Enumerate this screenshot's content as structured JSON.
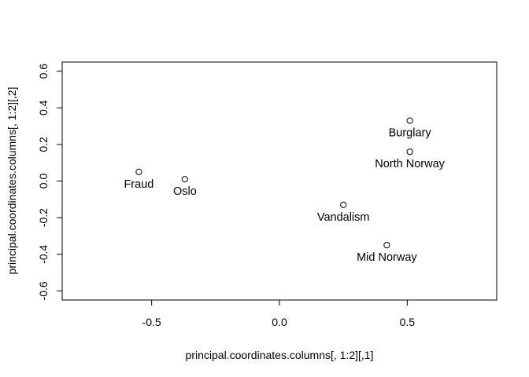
{
  "chart_data": {
    "type": "scatter",
    "title": "",
    "xlabel": "principal.coordinates.columns[, 1:2][,1]",
    "ylabel": "principal.coordinates.columns[, 1:2][,2]",
    "xlim": [
      -0.85,
      0.85
    ],
    "ylim": [
      -0.65,
      0.65
    ],
    "xticks": [
      -0.5,
      0.0,
      0.5
    ],
    "xtick_labels": [
      "-0.5",
      "0.0",
      "0.5"
    ],
    "yticks": [
      -0.6,
      -0.4,
      -0.2,
      0.0,
      0.2,
      0.4,
      0.6
    ],
    "ytick_labels": [
      "-0.6",
      "-0.4",
      "-0.2",
      "0.0",
      "0.2",
      "0.4",
      "0.6"
    ],
    "grid": false,
    "marker": "open-circle",
    "points": [
      {
        "label": "Fraud",
        "x": -0.55,
        "y": 0.05
      },
      {
        "label": "Oslo",
        "x": -0.37,
        "y": 0.01
      },
      {
        "label": "Vandalism",
        "x": 0.25,
        "y": -0.13
      },
      {
        "label": "Burglary",
        "x": 0.51,
        "y": 0.33
      },
      {
        "label": "North Norway",
        "x": 0.51,
        "y": 0.16
      },
      {
        "label": "Mid Norway",
        "x": 0.42,
        "y": -0.35
      }
    ]
  }
}
